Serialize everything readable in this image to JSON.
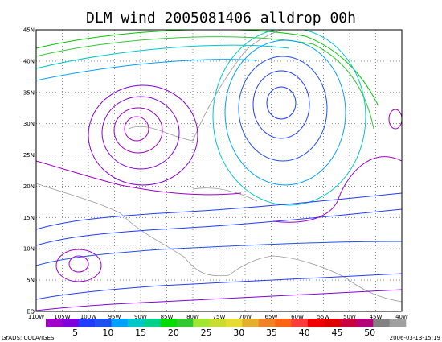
{
  "header": {
    "title": "DLM wind 2005081406 alldrop 00h"
  },
  "map": {
    "lon_labels": [
      "110W",
      "105W",
      "100W",
      "95W",
      "90W",
      "85W",
      "80W",
      "75W",
      "70W",
      "65W",
      "60W",
      "55W",
      "50W",
      "45W",
      "40W"
    ],
    "lat_labels": [
      "EQ",
      "5N",
      "10N",
      "15N",
      "20N",
      "25N",
      "30N",
      "35N",
      "40N",
      "45N"
    ]
  },
  "colorbar": {
    "colors": [
      "#a000c8",
      "#8200dc",
      "#1e3cff",
      "#1e50f0",
      "#00a0ff",
      "#00c8c8",
      "#00d28c",
      "#00dc00",
      "#32c832",
      "#a0e632",
      "#c8dc32",
      "#e6dc32",
      "#e6af2d",
      "#f08228",
      "#fa6414",
      "#fa3c3c",
      "#f00000",
      "#dc0000",
      "#c8003c",
      "#b40078",
      "#828282",
      "#a0a0a0"
    ],
    "labels": [
      "5",
      "10",
      "15",
      "20",
      "25",
      "30",
      "35",
      "40",
      "45",
      "50"
    ]
  },
  "footer": {
    "left": "GrADS: COLA/IGES",
    "right": "2006-03-13-15:19"
  }
}
